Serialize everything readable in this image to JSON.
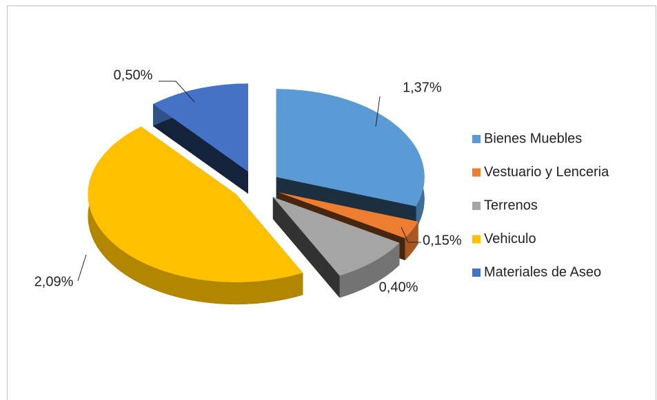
{
  "chart_data": {
    "type": "pie",
    "categories": [
      "Bienes Muebles",
      "Vestuario y Lenceria",
      "Terrenos",
      "Vehiculo",
      "Materiales de Aseo"
    ],
    "values": [
      1.37,
      0.15,
      0.4,
      2.09,
      0.5
    ],
    "value_labels": [
      "1,37%",
      "0,15%",
      "0,40%",
      "2,09%",
      "0,50%"
    ],
    "colors": [
      "#5b9bd5",
      "#ed7d31",
      "#a5a5a5",
      "#ffc000",
      "#4472c4"
    ],
    "legend": "right"
  }
}
